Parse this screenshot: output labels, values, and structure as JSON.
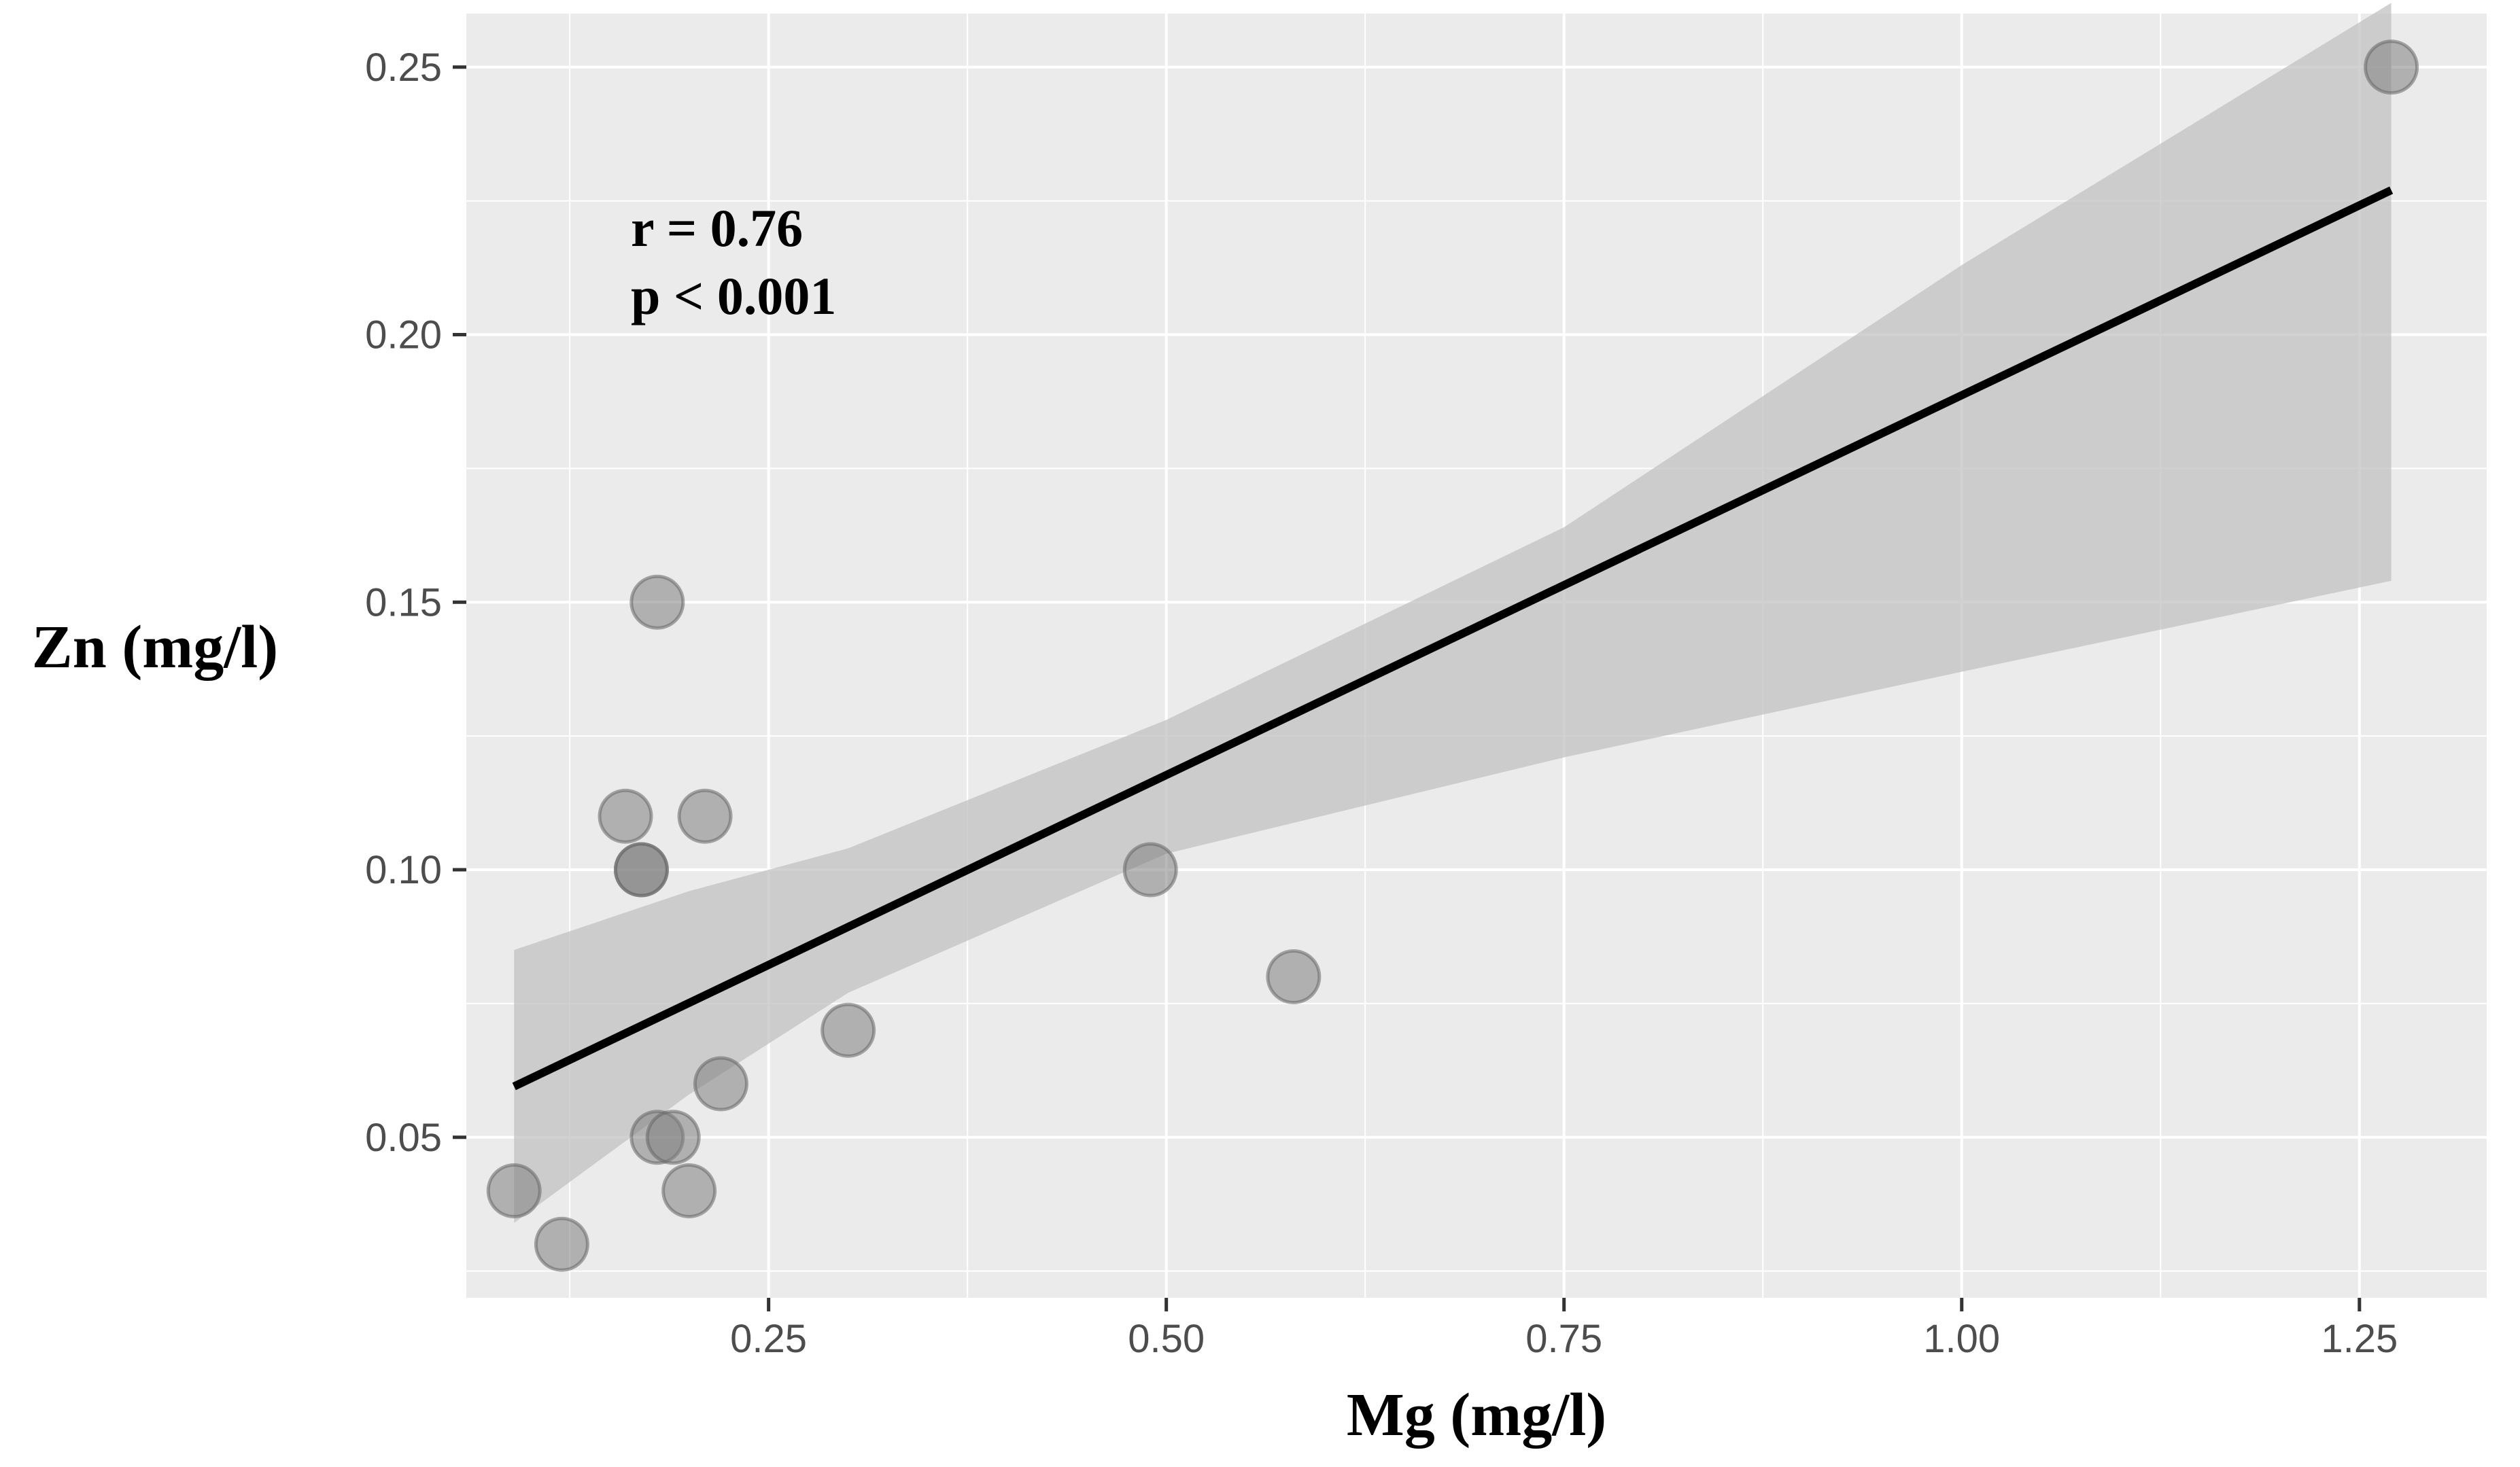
{
  "chart_data": {
    "type": "scatter",
    "title": "",
    "xlabel": "Mg (mg/l)",
    "ylabel": "Zn (mg/l)",
    "xlim": [
      0.06,
      1.33
    ],
    "ylim": [
      0.02,
      0.26
    ],
    "x_ticks": [
      0.25,
      0.5,
      0.75,
      1.0,
      1.25
    ],
    "x_tick_labels": [
      "0.25",
      "0.50",
      "0.75",
      "1.00",
      "1.25"
    ],
    "y_ticks": [
      0.05,
      0.1,
      0.15,
      0.2,
      0.25
    ],
    "y_tick_labels": [
      "0.05",
      "0.10",
      "0.15",
      "0.20",
      "0.25"
    ],
    "grid": true,
    "points": [
      {
        "x": 0.09,
        "y": 0.04
      },
      {
        "x": 0.12,
        "y": 0.03
      },
      {
        "x": 0.16,
        "y": 0.11
      },
      {
        "x": 0.17,
        "y": 0.1
      },
      {
        "x": 0.17,
        "y": 0.1
      },
      {
        "x": 0.18,
        "y": 0.15
      },
      {
        "x": 0.18,
        "y": 0.05
      },
      {
        "x": 0.19,
        "y": 0.05
      },
      {
        "x": 0.2,
        "y": 0.04
      },
      {
        "x": 0.21,
        "y": 0.11
      },
      {
        "x": 0.22,
        "y": 0.06
      },
      {
        "x": 0.3,
        "y": 0.07
      },
      {
        "x": 0.49,
        "y": 0.1
      },
      {
        "x": 0.58,
        "y": 0.08
      },
      {
        "x": 1.27,
        "y": 0.25
      }
    ],
    "regression_line": {
      "x": [
        0.09,
        1.27
      ],
      "y": [
        0.0595,
        0.227
      ]
    },
    "confidence_band": {
      "x": [
        0.09,
        0.2,
        0.3,
        0.5,
        0.75,
        1.0,
        1.27
      ],
      "lower": [
        0.034,
        0.058,
        0.077,
        0.103,
        0.121,
        0.137,
        0.154
      ],
      "upper": [
        0.085,
        0.096,
        0.104,
        0.128,
        0.164,
        0.213,
        0.262
      ]
    },
    "annotations": {
      "r_text": "r = 0.76",
      "p_text": "p < 0.001"
    },
    "colors": {
      "panel_bg": "#ebebeb",
      "grid": "#ffffff",
      "band": "#c2c2c2",
      "line": "#000000",
      "point_fill": "#7f7f7f",
      "point_stroke": "#666666"
    }
  }
}
